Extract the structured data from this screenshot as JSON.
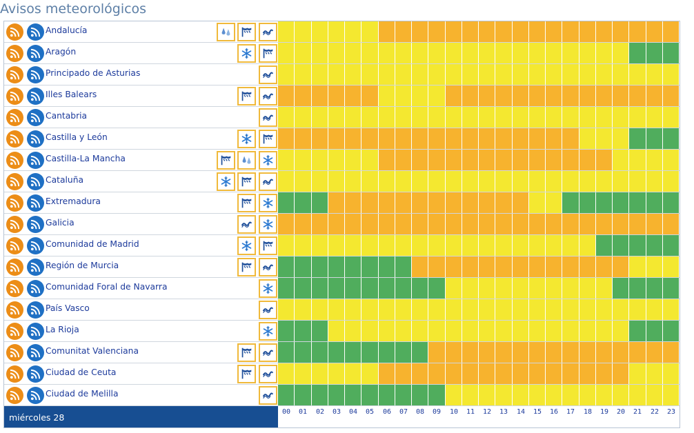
{
  "title": "Avisos meteorológicos",
  "footer_day": "miércoles 28",
  "colors": {
    "yellow": "#f4e830",
    "orange": "#f7b32e",
    "green": "#50ad5d"
  },
  "hours": [
    "00",
    "01",
    "02",
    "03",
    "04",
    "05",
    "06",
    "07",
    "08",
    "09",
    "10",
    "11",
    "12",
    "13",
    "14",
    "15",
    "16",
    "17",
    "18",
    "19",
    "20",
    "21",
    "22",
    "23"
  ],
  "regions": [
    {
      "name": "Andalucía",
      "icons": [
        "rain-icon",
        "wind-icon",
        "coastal-icon"
      ],
      "levels": "YYYYYYOOOOOOOOOOOOOOOOOO"
    },
    {
      "name": "Aragón",
      "icons": [
        "snow-icon",
        "wind-icon"
      ],
      "levels": "YYYYYYYYYYYYYYYYYYYYYGGG"
    },
    {
      "name": "Principado de Asturias",
      "icons": [
        "coastal-icon"
      ],
      "levels": "YYYYYYYYYYYYYYYYYYYYYYYY"
    },
    {
      "name": "Illes Balears",
      "icons": [
        "wind-icon",
        "coastal-icon"
      ],
      "levels": "OOOOOOYYYYOOOOOOOOOOOOOO"
    },
    {
      "name": "Cantabria",
      "icons": [
        "coastal-icon"
      ],
      "levels": "YYYYYYYYYYYYYYYYYYYYYYYY"
    },
    {
      "name": "Castilla y León",
      "icons": [
        "snow-icon",
        "wind-icon"
      ],
      "levels": "OOOOOOOOOOOOOOOOOOYYYGGG"
    },
    {
      "name": "Castilla-La Mancha",
      "icons": [
        "wind-icon",
        "rain-icon",
        "snow-icon"
      ],
      "levels": "YYYYYYOOOOOOOOOOOOOOYYYY"
    },
    {
      "name": "Cataluña",
      "icons": [
        "snow-icon",
        "wind-icon",
        "coastal-icon"
      ],
      "levels": "YYYYYYYYYYYYYYYYYYYYYYYY"
    },
    {
      "name": "Extremadura",
      "icons": [
        "wind-icon",
        "snow-icon"
      ],
      "levels": "GGGOOOOOOOOOOOOYYGGGGGGG"
    },
    {
      "name": "Galicia",
      "icons": [
        "coastal-icon",
        "snow-icon"
      ],
      "levels": "OOOOOOOOOOOOOOOOOOOOOOOO"
    },
    {
      "name": "Comunidad de Madrid",
      "icons": [
        "snow-icon",
        "wind-icon"
      ],
      "levels": "YYYYYYYYYYYYYYYYYYYGGGGG"
    },
    {
      "name": "Región de Murcia",
      "icons": [
        "wind-icon",
        "coastal-icon"
      ],
      "levels": "GGGGGGGGOOOOOOOOOOOOOYYY"
    },
    {
      "name": "Comunidad Foral de Navarra",
      "icons": [
        "snow-icon"
      ],
      "levels": "GGGGGGGGGGYYYYYYYYYYGGGG"
    },
    {
      "name": "País Vasco",
      "icons": [
        "coastal-icon"
      ],
      "levels": "YYYYYYYYYYYYYYYYYYYYYYYY"
    },
    {
      "name": "La Rioja",
      "icons": [
        "snow-icon"
      ],
      "levels": "GGGYYYYYYYYYYYYYYYYYYGGG"
    },
    {
      "name": "Comunitat Valenciana",
      "icons": [
        "wind-icon",
        "coastal-icon"
      ],
      "levels": "GGGGGGGGGOOOOOOOOOOOOOOO"
    },
    {
      "name": "Ciudad de Ceuta",
      "icons": [
        "wind-icon",
        "coastal-icon"
      ],
      "levels": "YYYYYYOOOOOOOOOOOOOOOYYY"
    },
    {
      "name": "Ciudad de Melilla",
      "icons": [
        "coastal-icon"
      ],
      "levels": "GGGGGGGGGGYYYYYYYYYYYYYY"
    }
  ]
}
